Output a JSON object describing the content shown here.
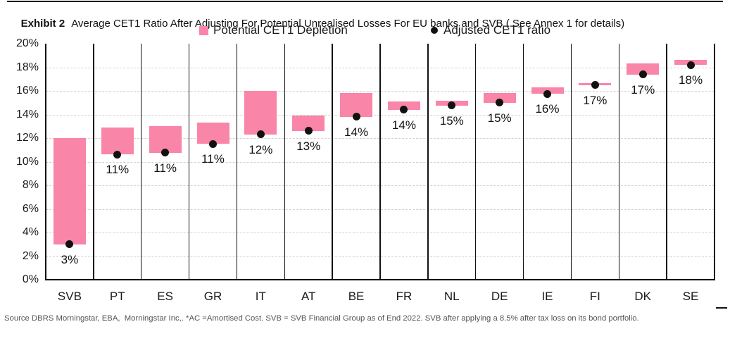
{
  "title": {
    "prefix": "Exhibit 2",
    "text": "Average CET1 Ratio After Adjusting For Potential Unrealised Losses For EU banks and SVB ( See Annex 1 for details)"
  },
  "legend": {
    "items": [
      {
        "label": "Potential CET1 Depletion",
        "marker": "square",
        "color": "#f985a8"
      },
      {
        "label": "Adjusted CET1 ratio",
        "marker": "dot",
        "color": "#111111"
      }
    ]
  },
  "footer": "Source DBRS Morningstar, EBA,  Morningstar Inc,. *AC =Amortised Cost. SVB = SVB Financial Group as of End 2022. SVB after applying a 8.5% after tax loss on its bond portfolio.",
  "chart_data": {
    "type": "bar",
    "subtype": "floating-range-bar-with-points",
    "title": "Average CET1 Ratio After Adjusting For Potential Unrealised Losses For EU banks and SVB ( See Annex 1 for details)",
    "categories": [
      "SVB",
      "PT",
      "ES",
      "GR",
      "IT",
      "AT",
      "BE",
      "FR",
      "NL",
      "DE",
      "IE",
      "FI",
      "DK",
      "SE"
    ],
    "series": [
      {
        "name": "Potential CET1 Depletion",
        "kind": "range-bar",
        "color": "#f985a8",
        "bottom": [
          3.0,
          10.6,
          10.75,
          11.5,
          12.3,
          12.6,
          13.8,
          14.4,
          14.75,
          15.0,
          15.75,
          16.5,
          17.4,
          18.2
        ],
        "top": [
          12.0,
          12.9,
          13.0,
          13.3,
          16.0,
          13.9,
          15.8,
          15.1,
          15.15,
          15.85,
          16.3,
          16.65,
          18.3,
          18.6
        ]
      },
      {
        "name": "Adjusted CET1 ratio",
        "kind": "point",
        "color": "#111111",
        "values": [
          3.0,
          10.6,
          10.75,
          11.5,
          12.3,
          12.6,
          13.8,
          14.4,
          14.75,
          15.0,
          15.75,
          16.5,
          17.4,
          18.2
        ]
      }
    ],
    "point_labels": [
      "3%",
      "11%",
      "11%",
      "11%",
      "12%",
      "13%",
      "14%",
      "14%",
      "15%",
      "15%",
      "16%",
      "17%",
      "17%",
      "18%"
    ],
    "y_ticks": [
      "20%",
      "18%",
      "16%",
      "14%",
      "12%",
      "10%",
      "8%",
      "6%",
      "4%",
      "2%",
      "0%"
    ],
    "ylim": [
      0,
      20
    ],
    "y_step": 2,
    "grid": "horizontal-dashed",
    "column_separators": true,
    "legend_position": "top",
    "xlabel": "",
    "ylabel": ""
  }
}
